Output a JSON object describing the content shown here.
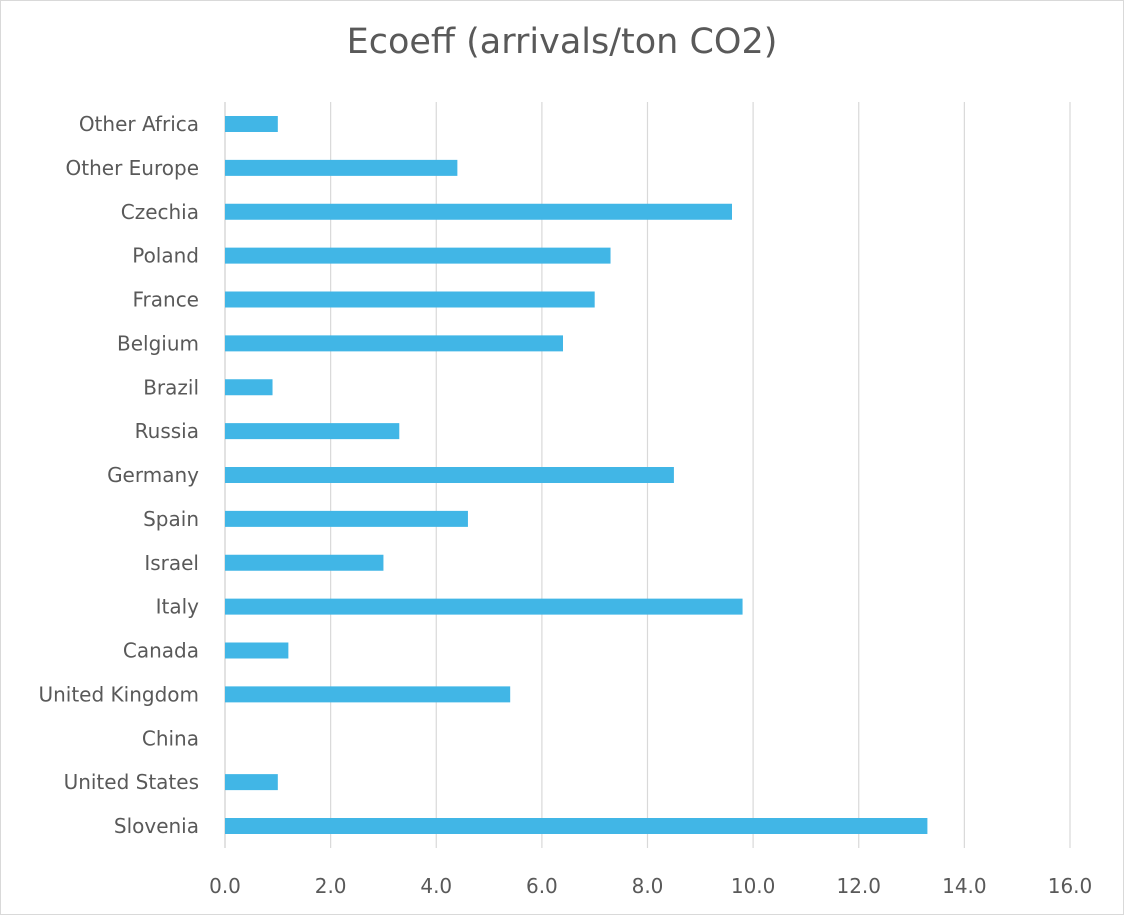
{
  "chart_data": {
    "type": "bar",
    "orientation": "horizontal",
    "title": "Ecoeff (arrivals/ton CO2)",
    "xlabel": "",
    "ylabel": "",
    "categories": [
      "Other Africa",
      "Other Europe",
      "Czechia",
      "Poland",
      "France",
      "Belgium",
      "Brazil",
      "Russia",
      "Germany",
      "Spain",
      "Israel",
      "Italy",
      "Canada",
      "United Kingdom",
      "China",
      "United States",
      "Slovenia"
    ],
    "values": [
      1.0,
      4.4,
      9.6,
      7.3,
      7.0,
      6.4,
      0.9,
      3.3,
      8.5,
      4.6,
      3.0,
      9.8,
      1.2,
      5.4,
      0.0,
      1.0,
      13.3
    ],
    "xlim": [
      0,
      16
    ],
    "x_ticks": [
      "0.0",
      "2.0",
      "4.0",
      "6.0",
      "8.0",
      "10.0",
      "12.0",
      "14.0",
      "16.0"
    ],
    "grid": "vertical",
    "legend": "none",
    "bar_color": "#41b6e6",
    "grid_color": "#d9d9d9"
  }
}
